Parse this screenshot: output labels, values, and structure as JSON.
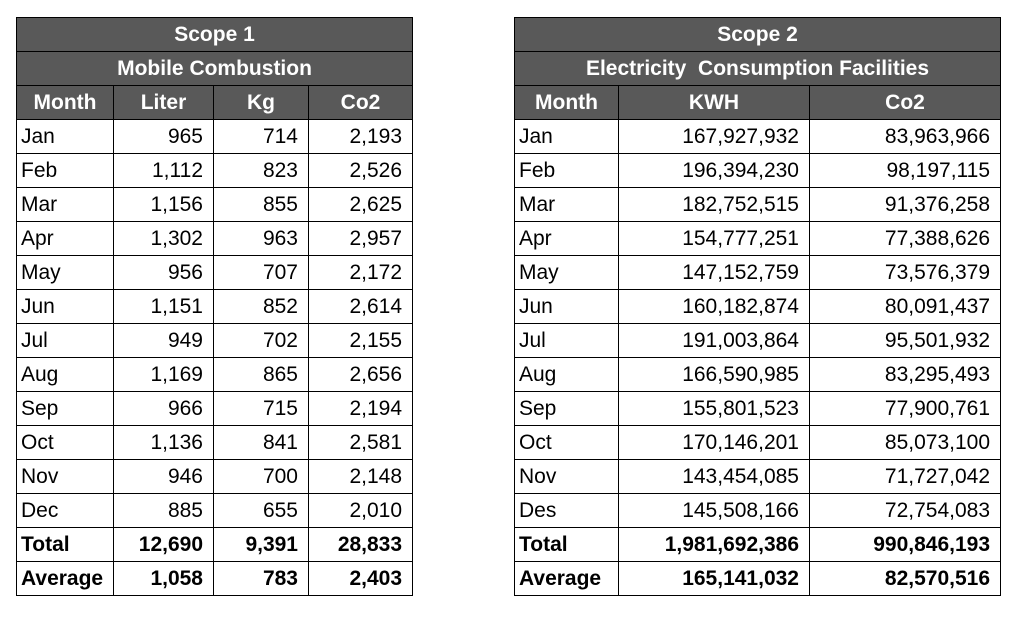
{
  "scope1": {
    "title": "Scope 1",
    "subtitle": "Mobile Combustion",
    "columns": [
      "Month",
      "Liter",
      "Kg",
      "Co2"
    ],
    "rows": [
      [
        "Jan",
        "965",
        "714",
        "2,193"
      ],
      [
        "Feb",
        "1,112",
        "823",
        "2,526"
      ],
      [
        "Mar",
        "1,156",
        "855",
        "2,625"
      ],
      [
        "Apr",
        "1,302",
        "963",
        "2,957"
      ],
      [
        "May",
        "956",
        "707",
        "2,172"
      ],
      [
        "Jun",
        "1,151",
        "852",
        "2,614"
      ],
      [
        "Jul",
        "949",
        "702",
        "2,155"
      ],
      [
        "Aug",
        "1,169",
        "865",
        "2,656"
      ],
      [
        "Sep",
        "966",
        "715",
        "2,194"
      ],
      [
        "Oct",
        "1,136",
        "841",
        "2,581"
      ],
      [
        "Nov",
        "946",
        "700",
        "2,148"
      ],
      [
        "Dec",
        "885",
        "655",
        "2,010"
      ]
    ],
    "total": [
      "Total",
      "12,690",
      "9,391",
      "28,833"
    ],
    "average": [
      "Average",
      "1,058",
      "783",
      "2,403"
    ]
  },
  "scope2": {
    "title": "Scope 2",
    "subtitle": "Electricity  Consumption Facilities",
    "columns": [
      "Month",
      "KWH",
      "Co2"
    ],
    "rows": [
      [
        "Jan",
        "167,927,932",
        "83,963,966"
      ],
      [
        "Feb",
        "196,394,230",
        "98,197,115"
      ],
      [
        "Mar",
        "182,752,515",
        "91,376,258"
      ],
      [
        "Apr",
        "154,777,251",
        "77,388,626"
      ],
      [
        "May",
        "147,152,759",
        "73,576,379"
      ],
      [
        "Jun",
        "160,182,874",
        "80,091,437"
      ],
      [
        "Jul",
        "191,003,864",
        "95,501,932"
      ],
      [
        "Aug",
        "166,590,985",
        "83,295,493"
      ],
      [
        "Sep",
        "155,801,523",
        "77,900,761"
      ],
      [
        "Oct",
        "170,146,201",
        "85,073,100"
      ],
      [
        "Nov",
        "143,454,085",
        "71,727,042"
      ],
      [
        "Des",
        "145,508,166",
        "72,754,083"
      ]
    ],
    "total": [
      "Total",
      "1,981,692,386",
      "990,846,193"
    ],
    "average": [
      "Average",
      "165,141,032",
      "82,570,516"
    ]
  },
  "colors": {
    "header_bg": "#595959",
    "header_text": "#ffffff",
    "border": "#000000"
  }
}
